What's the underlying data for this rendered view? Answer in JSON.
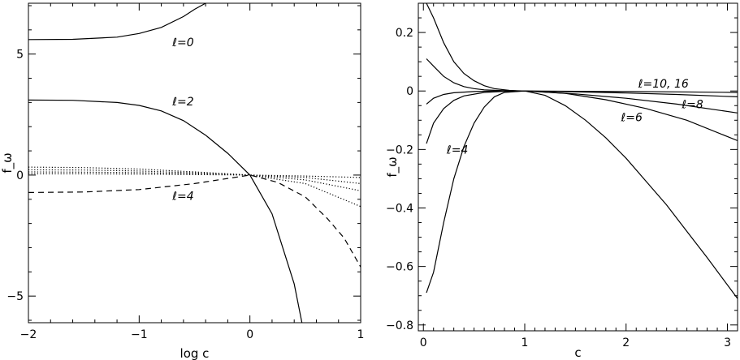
{
  "chart_data": [
    {
      "type": "line",
      "xlabel": "log c",
      "ylabel": "f_ω",
      "xlim": [
        -2,
        1
      ],
      "ylim": [
        -6.1,
        7.1
      ],
      "x_ticks": [
        -2,
        -1,
        0,
        1
      ],
      "x_tick_labels": [
        "−2",
        "−1",
        "0",
        "1"
      ],
      "y_ticks": [
        -5,
        0,
        5
      ],
      "y_tick_labels": [
        "−5",
        "0",
        "5"
      ],
      "grid": false,
      "series": [
        {
          "style": "solid",
          "x": [
            -2,
            -1.6,
            -1.2,
            -1.0,
            -0.8,
            -0.6,
            -0.5,
            -0.4
          ],
          "y": [
            5.6,
            5.61,
            5.7,
            5.85,
            6.1,
            6.55,
            6.85,
            7.1
          ]
        },
        {
          "style": "solid",
          "x": [
            -2,
            -1.6,
            -1.2,
            -1.0,
            -0.8,
            -0.6,
            -0.4,
            -0.2,
            0,
            0.2,
            0.4,
            0.47
          ],
          "y": [
            3.1,
            3.09,
            3.0,
            2.88,
            2.65,
            2.25,
            1.65,
            0.9,
            0,
            -1.6,
            -4.5,
            -6.1
          ]
        },
        {
          "style": "dashed",
          "x": [
            -2,
            -1.5,
            -1.0,
            -0.5,
            0,
            0.25,
            0.5,
            0.7,
            0.85,
            1.0
          ],
          "y": [
            -0.72,
            -0.7,
            -0.6,
            -0.35,
            0,
            -0.3,
            -0.9,
            -1.8,
            -2.6,
            -3.8
          ]
        },
        {
          "style": "dotted",
          "x": [
            -2,
            -1.5,
            -1.0,
            -0.5,
            0,
            0.5,
            1.0
          ],
          "y": [
            0.33,
            0.31,
            0.25,
            0.13,
            0,
            -0.35,
            -1.3
          ]
        },
        {
          "style": "dotted",
          "x": [
            -2,
            -1.5,
            -1.0,
            -0.5,
            0,
            0.5,
            1.0
          ],
          "y": [
            0.22,
            0.21,
            0.17,
            0.09,
            0,
            -0.2,
            -0.65
          ]
        },
        {
          "style": "dotted",
          "x": [
            -2,
            -1.5,
            -1.0,
            -0.5,
            0,
            0.5,
            1.0
          ],
          "y": [
            0.13,
            0.12,
            0.1,
            0.05,
            0,
            -0.1,
            -0.35
          ]
        },
        {
          "style": "dotted",
          "x": [
            -2,
            -1.5,
            -1.0,
            -0.5,
            0,
            0.5,
            1.0
          ],
          "y": [
            0.05,
            0.05,
            0.04,
            0.02,
            0,
            -0.04,
            -0.1
          ]
        }
      ],
      "annotations": [
        {
          "text": "ℓ=0",
          "x": -0.7,
          "y": 5.5
        },
        {
          "text": "ℓ=2",
          "x": -0.7,
          "y": 3.05
        },
        {
          "text": "ℓ=4",
          "x": -0.7,
          "y": -0.85
        }
      ]
    },
    {
      "type": "line",
      "xlabel": "c",
      "ylabel": "f_ω",
      "xlim": [
        -0.05,
        3.1
      ],
      "ylim": [
        -0.82,
        0.3
      ],
      "x_ticks": [
        0,
        1,
        2,
        3
      ],
      "x_tick_labels": [
        "0",
        "1",
        "2",
        "3"
      ],
      "y_ticks": [
        -0.8,
        -0.6,
        -0.4,
        -0.2,
        0,
        0.2
      ],
      "y_tick_labels": [
        "−0.8",
        "−0.6",
        "−0.4",
        "−0.2",
        "0",
        "0.2"
      ],
      "grid": false,
      "series": [
        {
          "style": "solid",
          "x": [
            0.03,
            0.1,
            0.2,
            0.3,
            0.4,
            0.5,
            0.6,
            0.7,
            0.8,
            1.0,
            1.2,
            1.4,
            1.6,
            1.8,
            2.0,
            2.2,
            2.4,
            2.6,
            2.8,
            3.1
          ],
          "y": [
            -0.69,
            -0.62,
            -0.45,
            -0.3,
            -0.19,
            -0.11,
            -0.055,
            -0.02,
            -0.005,
            0,
            -0.015,
            -0.05,
            -0.1,
            -0.16,
            -0.23,
            -0.31,
            -0.39,
            -0.48,
            -0.57,
            -0.71
          ]
        },
        {
          "style": "solid",
          "x": [
            0.03,
            0.1,
            0.2,
            0.3,
            0.4,
            0.6,
            0.8,
            1.0,
            1.4,
            1.8,
            2.2,
            2.6,
            3.1
          ],
          "y": [
            -0.18,
            -0.11,
            -0.06,
            -0.032,
            -0.017,
            -0.005,
            -0.001,
            0,
            -0.008,
            -0.03,
            -0.06,
            -0.1,
            -0.17
          ]
        },
        {
          "style": "solid",
          "x": [
            0.03,
            0.1,
            0.2,
            0.3,
            0.5,
            0.7,
            1.0,
            1.5,
            2.0,
            2.5,
            3.1
          ],
          "y": [
            -0.045,
            -0.025,
            -0.012,
            -0.006,
            -0.002,
            0,
            0,
            -0.01,
            -0.025,
            -0.045,
            -0.075
          ]
        },
        {
          "style": "solid",
          "x": [
            0.03,
            0.1,
            0.2,
            0.3,
            0.4,
            0.5,
            0.6,
            0.7,
            0.85,
            1.0,
            1.5,
            2.0,
            2.5,
            3.1
          ],
          "y": [
            0.3,
            0.25,
            0.165,
            0.1,
            0.06,
            0.035,
            0.018,
            0.008,
            0.002,
            0,
            -0.003,
            -0.007,
            -0.012,
            -0.02
          ]
        },
        {
          "style": "solid",
          "x": [
            0.03,
            0.1,
            0.2,
            0.3,
            0.4,
            0.5,
            0.6,
            0.8,
            1.0,
            1.5,
            2.0,
            2.5,
            3.1
          ],
          "y": [
            0.11,
            0.085,
            0.05,
            0.028,
            0.015,
            0.008,
            0.004,
            0.001,
            0,
            -0.001,
            -0.002,
            -0.003,
            -0.005
          ]
        }
      ],
      "annotations": [
        {
          "text": "ℓ=10, 16",
          "x": 2.12,
          "y": 0.025
        },
        {
          "text": "ℓ=8",
          "x": 2.55,
          "y": -0.045
        },
        {
          "text": "ℓ=6",
          "x": 1.95,
          "y": -0.09
        },
        {
          "text": "ℓ=4",
          "x": 0.23,
          "y": -0.2
        }
      ]
    }
  ]
}
